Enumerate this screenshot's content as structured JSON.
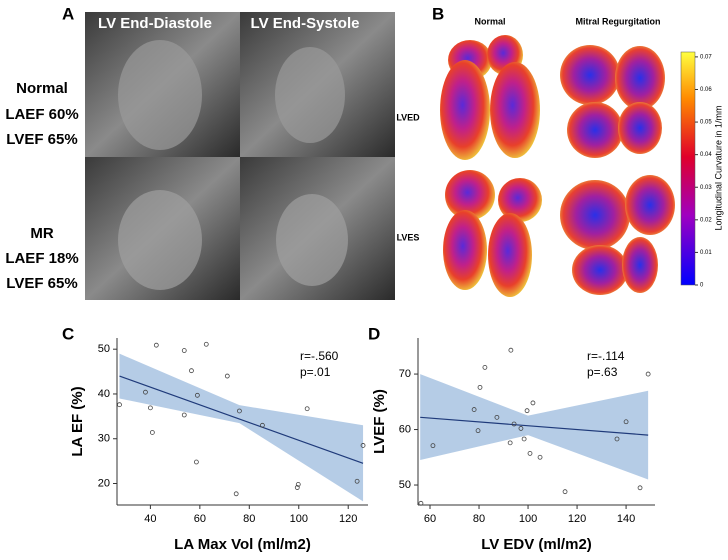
{
  "panels": {
    "a": {
      "label": "A",
      "columns": [
        "LV End-Diastole",
        "LV End-Systole"
      ],
      "rows": [
        {
          "group": "Normal",
          "lines": [
            "LAEF 60%",
            "LVEF 65%"
          ]
        },
        {
          "group": "MR",
          "lines": [
            "LAEF 18%",
            "LVEF 65%"
          ]
        }
      ]
    },
    "b": {
      "label": "B",
      "columns": [
        "Normal",
        "Mitral Regurgitation"
      ],
      "rows": [
        "LVED",
        "LVES"
      ],
      "colorbar": {
        "title": "Longitudinal Curvature in 1/mm",
        "lim": [
          0,
          0.0715
        ],
        "ticks": [
          0,
          0.01,
          0.02,
          0.03,
          0.04,
          0.05,
          0.06,
          0.07
        ]
      }
    }
  },
  "chart_data": [
    {
      "type": "scatter",
      "panel_label": "C",
      "x_label": "LA Max Vol (ml/m2)",
      "y_label": "LA EF (%)",
      "xlim": [
        26.5,
        128
      ],
      "ylim": [
        15.2,
        52.5
      ],
      "xticks": [
        40,
        60,
        80,
        100,
        120
      ],
      "yticks": [
        20,
        30,
        40,
        50
      ],
      "color": "#444444",
      "x": [
        27.5,
        38,
        40,
        40.8,
        42.4,
        53.7,
        53.7,
        56.6,
        59,
        58.6,
        62.6,
        71.1,
        74.7,
        76,
        85.3,
        99.4,
        99.8,
        103.4,
        123.6,
        126
      ],
      "values": [
        37.6,
        40.4,
        36.9,
        31.4,
        50.9,
        49.7,
        35.3,
        45.2,
        39.7,
        24.8,
        51.1,
        44,
        17.7,
        36.2,
        33,
        19.1,
        19.8,
        36.7,
        20.5,
        28.5
      ],
      "fit": {
        "x": [
          27.5,
          126
        ],
        "values": [
          44,
          24.5
        ],
        "color": "#1f3a7a"
      },
      "band": {
        "x": [
          27.5,
          76,
          126
        ],
        "lower": [
          39,
          33.5,
          16
        ],
        "upper": [
          49,
          37.5,
          33
        ],
        "color": "#b5cce6"
      },
      "annotations": [
        "r=-.560",
        "p=.01"
      ]
    },
    {
      "type": "scatter",
      "panel_label": "D",
      "x_label": "LV EDV (ml/m2)",
      "y_label": "LVEF (%)",
      "xlim": [
        55.1,
        151.8
      ],
      "ylim": [
        46.4,
        76.5
      ],
      "xticks": [
        60,
        80,
        100,
        120,
        140
      ],
      "yticks": [
        50,
        60,
        70
      ],
      "color": "#444444",
      "x": [
        56.3,
        61.2,
        78,
        80.4,
        82.4,
        79.6,
        87.3,
        93,
        94.3,
        92.7,
        97.1,
        98.4,
        99.6,
        100.8,
        102,
        104.9,
        115.1,
        136.3,
        140,
        145.7,
        149
      ],
      "values": [
        46.7,
        57.1,
        63.6,
        67.6,
        71.2,
        59.8,
        62.2,
        74.3,
        61,
        57.6,
        60.2,
        58.3,
        63.4,
        55.7,
        64.8,
        55,
        48.8,
        58.3,
        61.4,
        49.5,
        70
      ],
      "fit": {
        "x": [
          56,
          149
        ],
        "values": [
          62.2,
          59
        ],
        "color": "#1f3a7a"
      },
      "band": {
        "x": [
          56,
          100,
          149
        ],
        "lower": [
          54.5,
          59,
          51
        ],
        "upper": [
          70,
          62.5,
          67
        ],
        "color": "#b5cce6"
      },
      "annotations": [
        "r=-.114",
        "p=.63"
      ]
    }
  ]
}
